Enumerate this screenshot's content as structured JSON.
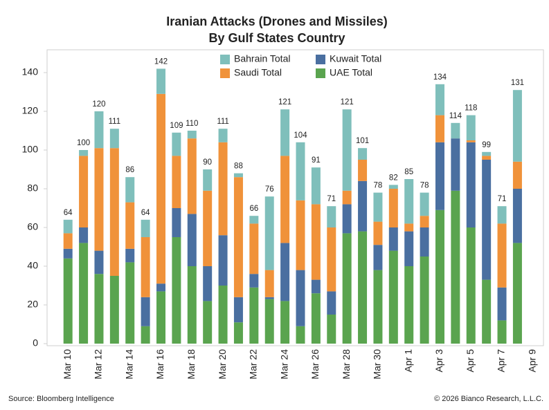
{
  "chart_data": {
    "type": "stacked-bar",
    "title": "Iranian Attacks (Drones and Missiles)",
    "subtitle": "By Gulf States Country",
    "source": "Source: Bloomberg Intelligence",
    "credit": "© 2026 Bianco Research, L.L.C.",
    "categories": [
      "Mar 10",
      null,
      "Mar 12",
      null,
      "Mar 14",
      null,
      "Mar 16",
      null,
      "Mar 18",
      null,
      "Mar 20",
      null,
      "Mar 22",
      null,
      "Mar 24",
      null,
      "Mar 26",
      null,
      "Mar 28",
      null,
      "Mar 30",
      null,
      "Apr 1",
      null,
      "Apr 3",
      null,
      "Apr 5",
      null,
      "Apr 7",
      null,
      "Apr 9"
    ],
    "series": [
      {
        "name": "UAE Total",
        "color": "#5aa44f",
        "values": [
          44,
          52,
          36,
          35,
          42,
          9,
          27,
          55,
          40,
          22,
          30,
          11,
          29,
          23,
          22,
          9,
          26,
          15,
          57,
          58,
          38,
          48,
          40,
          45,
          69,
          79,
          60,
          33,
          12,
          52,
          null
        ]
      },
      {
        "name": "Kuwait Total",
        "color": "#4a6fa0",
        "values": [
          5,
          8,
          12,
          0,
          7,
          15,
          4,
          15,
          27,
          18,
          26,
          13,
          7,
          1,
          30,
          29,
          7,
          12,
          15,
          26,
          13,
          12,
          18,
          15,
          35,
          27,
          44,
          62,
          17,
          28,
          null
        ]
      },
      {
        "name": "Saudi Total",
        "color": "#f0923a",
        "values": [
          8,
          37,
          53,
          66,
          24,
          31,
          98,
          27,
          39,
          39,
          48,
          62,
          26,
          14,
          45,
          36,
          39,
          33,
          7,
          11,
          12,
          20,
          4,
          6,
          14,
          0,
          1,
          2,
          33,
          14,
          null
        ]
      },
      {
        "name": "Bahrain Total",
        "color": "#7fbfbb",
        "values": [
          7,
          3,
          19,
          10,
          13,
          9,
          13,
          12,
          4,
          11,
          7,
          2,
          4,
          38,
          24,
          30,
          19,
          11,
          42,
          6,
          15,
          2,
          23,
          12,
          16,
          8,
          13,
          2,
          9,
          37,
          null
        ]
      }
    ],
    "totals": [
      64,
      100,
      120,
      111,
      86,
      64,
      142,
      109,
      110,
      90,
      111,
      88,
      66,
      76,
      121,
      104,
      91,
      71,
      121,
      101,
      78,
      82,
      85,
      78,
      134,
      114,
      118,
      99,
      71,
      131,
      null
    ],
    "ylim": [
      0,
      150
    ],
    "yticks": [
      0,
      20,
      40,
      60,
      80,
      100,
      120,
      140
    ],
    "grid": false
  }
}
